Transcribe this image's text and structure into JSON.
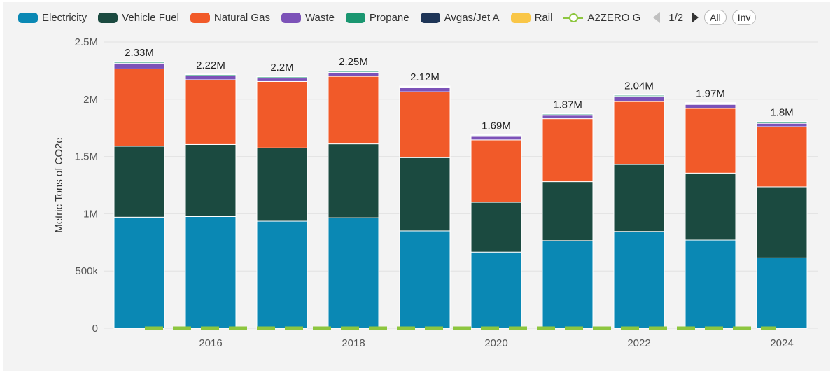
{
  "legend": {
    "items": [
      {
        "label": "Electricity",
        "color": "#0a88b4"
      },
      {
        "label": "Vehicle Fuel",
        "color": "#1b4a40"
      },
      {
        "label": "Natural Gas",
        "color": "#f15a29"
      },
      {
        "label": "Waste",
        "color": "#7c52b8"
      },
      {
        "label": "Propane",
        "color": "#1a9670"
      },
      {
        "label": "Avgas/Jet A",
        "color": "#1e3557"
      },
      {
        "label": "Rail",
        "color": "#f9c647"
      }
    ],
    "line_item": {
      "label": "A2ZERO G",
      "color": "#8dc63f"
    },
    "page": "1/2",
    "all_label": "All",
    "inv_label": "Inv"
  },
  "chart_data": {
    "type": "bar",
    "stacked": true,
    "ylabel": "Metric Tons of CO2e",
    "ylim": [
      0,
      2500000
    ],
    "yticks": [
      0,
      500000,
      1000000,
      1500000,
      2000000,
      2500000
    ],
    "ytick_labels": [
      "0",
      "500k",
      "1M",
      "1.5M",
      "2M",
      "2.5M"
    ],
    "grid": true,
    "legend_position": "top",
    "categories": [
      "2015",
      "2016",
      "2017",
      "2018",
      "2019",
      "2020",
      "2021",
      "2022",
      "2023",
      "2024"
    ],
    "xtick_labels": {
      "2016": "2016",
      "2018": "2018",
      "2020": "2020",
      "2022": "2022",
      "2024": "2024"
    },
    "series": [
      {
        "name": "Electricity",
        "color": "#0a88b4",
        "values": [
          970000,
          975000,
          935000,
          965000,
          850000,
          665000,
          765000,
          845000,
          770000,
          615000
        ]
      },
      {
        "name": "Vehicle Fuel",
        "color": "#1b4a40",
        "values": [
          620000,
          630000,
          640000,
          645000,
          640000,
          435000,
          515000,
          585000,
          585000,
          620000
        ]
      },
      {
        "name": "Natural Gas",
        "color": "#f15a29",
        "values": [
          675000,
          565000,
          580000,
          590000,
          575000,
          545000,
          550000,
          550000,
          565000,
          525000
        ]
      },
      {
        "name": "Waste",
        "color": "#7c52b8",
        "values": [
          50000,
          35000,
          30000,
          35000,
          35000,
          30000,
          30000,
          45000,
          35000,
          30000
        ]
      },
      {
        "name": "Propane",
        "color": "#1a9670",
        "values": [
          10000,
          10000,
          10000,
          10000,
          10000,
          10000,
          10000,
          10000,
          10000,
          10000
        ]
      },
      {
        "name": "Avgas/Jet A",
        "color": "#1e3557",
        "values": [
          5000,
          5000,
          5000,
          5000,
          5000,
          5000,
          5000,
          5000,
          5000,
          5000
        ]
      },
      {
        "name": "Rail",
        "color": "#f9c647",
        "values": [
          0,
          0,
          0,
          0,
          0,
          0,
          0,
          0,
          0,
          0
        ]
      }
    ],
    "totals_labels": [
      "2.33M",
      "2.22M",
      "2.2M",
      "2.25M",
      "2.12M",
      "1.69M",
      "1.87M",
      "2.04M",
      "1.97M",
      "1.8M"
    ],
    "line_series": {
      "name": "A2ZERO G",
      "color": "#8dc63f",
      "style": "dashed",
      "values": [
        0,
        0,
        0,
        0,
        0,
        0,
        0,
        0,
        0,
        0
      ]
    }
  }
}
